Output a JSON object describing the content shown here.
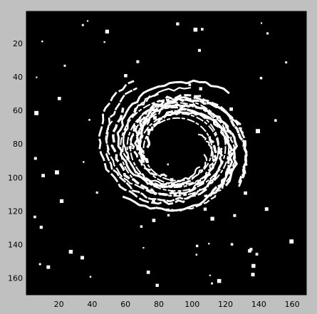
{
  "chart_data": {
    "type": "image",
    "xlim": [
      0.5,
      168.5
    ],
    "ylim": [
      0.5,
      169.5
    ],
    "xticks": [
      20,
      40,
      60,
      80,
      100,
      120,
      140,
      160
    ],
    "yticks": [
      20,
      40,
      60,
      80,
      100,
      120,
      140,
      160
    ],
    "y_reversed": true
  }
}
